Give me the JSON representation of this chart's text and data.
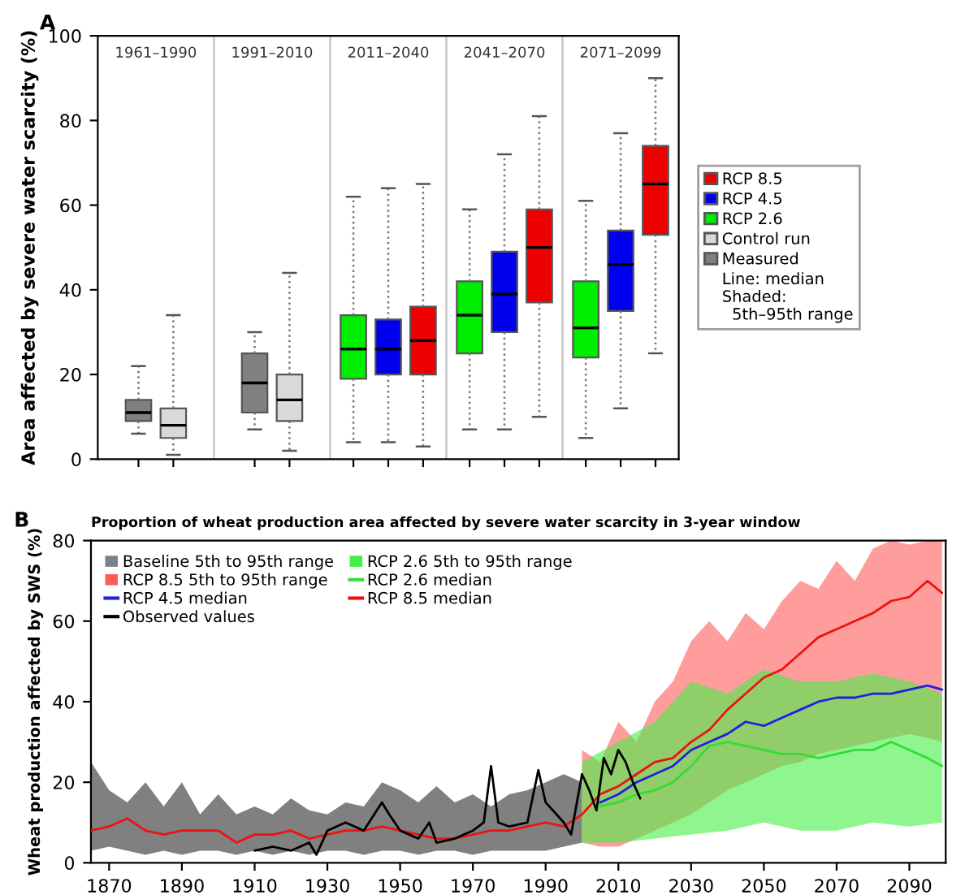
{
  "chart_data": [
    {
      "type": "box",
      "ylabel": "Area affected by severe water scarcity (%)",
      "categories": [
        "1961–1990",
        "1991–2010",
        "2011–2040",
        "2041–2070",
        "2071–2099"
      ],
      "ylim": [
        0,
        100
      ],
      "yticks": [
        0,
        20,
        40,
        60,
        80,
        100
      ],
      "tick_labels": "y",
      "grid": false,
      "legend": "right",
      "line_style": "dotted",
      "annotations": [
        "A",
        "Line: median\nShaded:\n  5th–95th range"
      ],
      "series": [
        {
          "name": "Measured",
          "color": "#808080",
          "boxes": [
            {
              "low": 6,
              "q1": 9,
              "median": 11,
              "q3": 14,
              "high": 22
            },
            {
              "low": 7,
              "q1": 11,
              "median": 18,
              "q3": 25,
              "high": 30
            },
            null,
            null,
            null
          ]
        },
        {
          "name": "Control run",
          "color": "#d9d9d9",
          "boxes": [
            {
              "low": 1,
              "q1": 5,
              "median": 8,
              "q3": 12,
              "high": 34
            },
            {
              "low": 2,
              "q1": 9,
              "median": 14,
              "q3": 20,
              "high": 44
            },
            null,
            null,
            null
          ]
        },
        {
          "name": "RCP 2.6",
          "color": "#00ee00",
          "boxes": [
            null,
            null,
            {
              "low": 4,
              "q1": 19,
              "median": 26,
              "q3": 34,
              "high": 62
            },
            {
              "low": 7,
              "q1": 25,
              "median": 34,
              "q3": 42,
              "high": 59
            },
            {
              "low": 5,
              "q1": 24,
              "median": 31,
              "q3": 42,
              "high": 61
            }
          ]
        },
        {
          "name": "RCP 4.5",
          "color": "#0000ee",
          "boxes": [
            null,
            null,
            {
              "low": 4,
              "q1": 20,
              "median": 26,
              "q3": 33,
              "high": 64
            },
            {
              "low": 7,
              "q1": 30,
              "median": 39,
              "q3": 49,
              "high": 72
            },
            {
              "low": 12,
              "q1": 35,
              "median": 46,
              "q3": 54,
              "high": 77
            }
          ]
        },
        {
          "name": "RCP 8.5",
          "color": "#ee0000",
          "boxes": [
            null,
            null,
            {
              "low": 3,
              "q1": 20,
              "median": 28,
              "q3": 36,
              "high": 65
            },
            {
              "low": 10,
              "q1": 37,
              "median": 50,
              "q3": 59,
              "high": 81
            },
            {
              "low": 25,
              "q1": 53,
              "median": 65,
              "q3": 74,
              "high": 90
            }
          ]
        }
      ]
    },
    {
      "type": "line",
      "title": "Proportion of wheat production area affected by severe water scarcity in 3-year window",
      "ylabel": "Wheat production affected by SWS (%)",
      "xlim": [
        1865,
        2100
      ],
      "xticks": [
        1870,
        1890,
        1910,
        1930,
        1950,
        1970,
        1990,
        2010,
        2030,
        2050,
        2070,
        2090
      ],
      "ylim": [
        0,
        80
      ],
      "yticks": [
        0,
        20,
        40,
        60,
        80
      ],
      "grid": false,
      "legend": "top left",
      "annotations": [
        "B"
      ],
      "x": [
        1865,
        1870,
        1875,
        1880,
        1885,
        1890,
        1895,
        1900,
        1905,
        1910,
        1915,
        1920,
        1925,
        1930,
        1935,
        1940,
        1945,
        1950,
        1955,
        1960,
        1965,
        1970,
        1975,
        1980,
        1985,
        1990,
        1995,
        2000,
        2005,
        2010,
        2015,
        2020,
        2025,
        2030,
        2035,
        2040,
        2045,
        2050,
        2055,
        2060,
        2065,
        2070,
        2075,
        2080,
        2085,
        2090,
        2095,
        2099
      ],
      "series": [
        {
          "name": "Baseline 5th to 95th range",
          "type": "area",
          "color": "#808080",
          "x": [
            1865,
            1870,
            1875,
            1880,
            1885,
            1890,
            1895,
            1900,
            1905,
            1910,
            1915,
            1920,
            1925,
            1930,
            1935,
            1940,
            1945,
            1950,
            1955,
            1960,
            1965,
            1970,
            1975,
            1980,
            1985,
            1990,
            1995,
            2000
          ],
          "values": [
            null,
            null,
            null,
            null,
            null,
            null,
            null,
            null,
            null,
            null,
            null,
            null,
            null,
            null,
            null,
            null,
            null,
            null,
            null,
            null,
            null,
            null,
            null,
            null,
            null,
            null,
            null,
            null
          ],
          "lower": [
            3,
            4,
            3,
            2,
            3,
            2,
            3,
            3,
            2,
            3,
            2,
            3,
            2,
            3,
            3,
            2,
            3,
            3,
            2,
            3,
            3,
            2,
            3,
            3,
            3,
            3,
            4,
            5
          ],
          "upper": [
            25,
            18,
            15,
            20,
            14,
            20,
            12,
            17,
            12,
            14,
            12,
            16,
            13,
            12,
            15,
            14,
            20,
            18,
            15,
            19,
            15,
            17,
            14,
            17,
            18,
            20,
            22,
            20
          ]
        },
        {
          "name": "RCP 8.5 5th to 95th range",
          "type": "area",
          "color": "#ff5c5c",
          "x": [
            2000,
            2005,
            2010,
            2015,
            2020,
            2025,
            2030,
            2035,
            2040,
            2045,
            2050,
            2055,
            2060,
            2065,
            2070,
            2075,
            2080,
            2085,
            2090,
            2095,
            2099
          ],
          "values": [
            null,
            null,
            null,
            null,
            null,
            null,
            null,
            null,
            null,
            null,
            null,
            null,
            null,
            null,
            null,
            null,
            null,
            null,
            null,
            null,
            null
          ],
          "lower": [
            5,
            4,
            4,
            6,
            8,
            10,
            12,
            15,
            18,
            20,
            22,
            24,
            25,
            27,
            28,
            29,
            30,
            31,
            32,
            31,
            30
          ],
          "upper": [
            28,
            25,
            35,
            30,
            40,
            45,
            55,
            60,
            55,
            62,
            58,
            65,
            70,
            68,
            75,
            70,
            78,
            80,
            79,
            80,
            80
          ]
        },
        {
          "name": "RCP 4.5 median",
          "type": "line",
          "color": "#2020dd",
          "values": [
            null,
            null,
            null,
            null,
            null,
            null,
            null,
            null,
            null,
            null,
            null,
            null,
            null,
            null,
            null,
            null,
            null,
            null,
            null,
            null,
            null,
            null,
            null,
            null,
            null,
            null,
            null,
            null,
            15,
            17,
            20,
            22,
            24,
            28,
            30,
            32,
            35,
            34,
            36,
            38,
            40,
            41,
            41,
            42,
            42,
            43,
            44,
            43
          ]
        },
        {
          "name": "Observed values",
          "type": "line",
          "color": "#000000",
          "x": [
            1910,
            1915,
            1920,
            1925,
            1927,
            1930,
            1935,
            1940,
            1945,
            1947,
            1950,
            1955,
            1958,
            1960,
            1965,
            1970,
            1973,
            1975,
            1977,
            1980,
            1985,
            1988,
            1990,
            1995,
            1997,
            2000,
            2002,
            2004,
            2006,
            2008,
            2010,
            2012,
            2014,
            2016
          ],
          "values": [
            3,
            4,
            3,
            5,
            2,
            8,
            10,
            8,
            15,
            12,
            8,
            6,
            10,
            5,
            6,
            8,
            10,
            24,
            10,
            9,
            10,
            23,
            15,
            10,
            7,
            22,
            18,
            13,
            26,
            22,
            28,
            25,
            20,
            16
          ]
        },
        {
          "name": "RCP 2.6 5th to 95th range",
          "type": "area",
          "color": "#44ee44",
          "x": [
            2000,
            2010,
            2020,
            2030,
            2040,
            2050,
            2060,
            2070,
            2080,
            2090,
            2099
          ],
          "values": [
            null,
            null,
            null,
            null,
            null,
            null,
            null,
            null,
            null,
            null,
            null
          ],
          "lower": [
            5,
            5,
            6,
            7,
            8,
            10,
            8,
            8,
            10,
            9,
            10
          ],
          "upper": [
            25,
            30,
            35,
            45,
            42,
            48,
            45,
            45,
            47,
            45,
            42
          ]
        },
        {
          "name": "RCP 2.6 median",
          "type": "line",
          "color": "#33dd33",
          "values": [
            null,
            null,
            null,
            null,
            null,
            null,
            null,
            null,
            null,
            null,
            null,
            null,
            null,
            null,
            null,
            null,
            null,
            null,
            null,
            null,
            null,
            null,
            null,
            null,
            null,
            null,
            null,
            null,
            14,
            15,
            17,
            18,
            20,
            24,
            29,
            30,
            29,
            28,
            27,
            27,
            26,
            27,
            28,
            28,
            30,
            28,
            26,
            24
          ]
        },
        {
          "name": "RCP 8.5 median",
          "type": "line",
          "color": "#ee1111",
          "values": [
            8,
            9,
            11,
            8,
            7,
            8,
            8,
            8,
            5,
            7,
            7,
            8,
            6,
            7,
            8,
            8,
            9,
            8,
            7,
            6,
            6,
            7,
            8,
            8,
            9,
            10,
            9,
            12,
            17,
            19,
            22,
            25,
            26,
            30,
            33,
            38,
            42,
            46,
            48,
            52,
            56,
            58,
            60,
            62,
            65,
            66,
            70,
            67
          ]
        }
      ]
    }
  ]
}
